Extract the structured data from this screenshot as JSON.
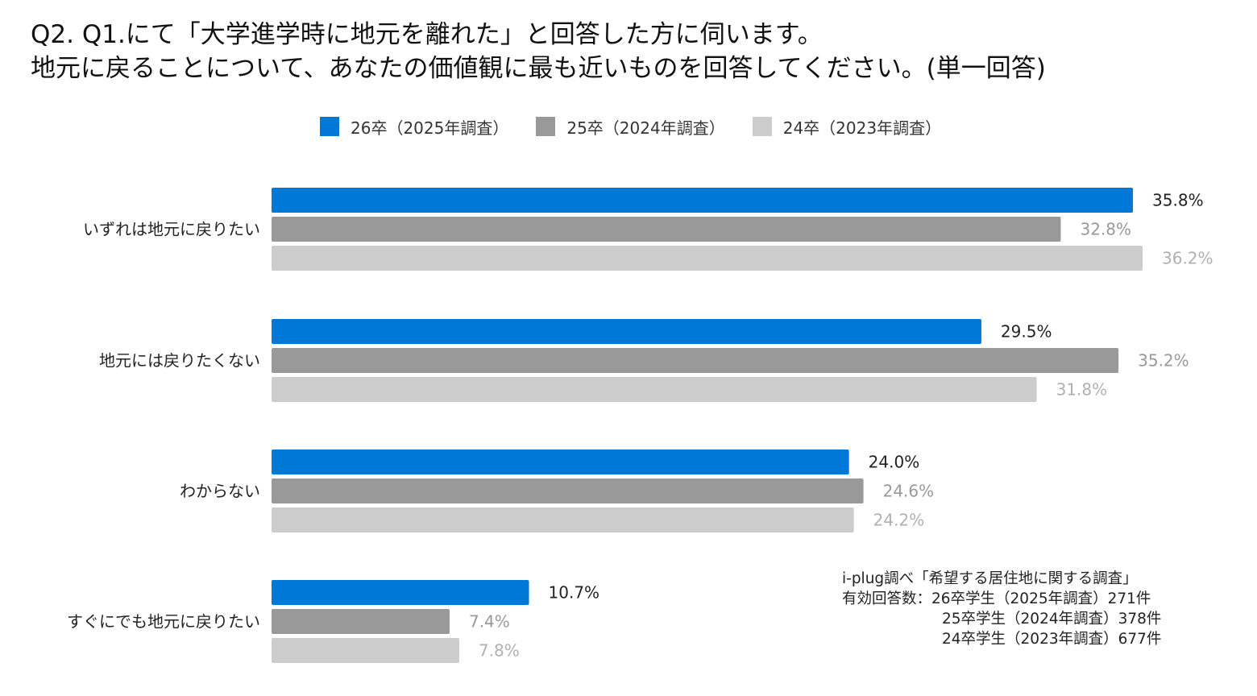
{
  "title": {
    "line1": "Q2. Q1.にて「大学進学時に地元を離れた」と回答した方に伺います。",
    "line2": "地元に戻ることについて、あなたの価値観に最も近いものを回答してください。(単一回答)"
  },
  "colors": {
    "series_2025": "#0078d7",
    "series_2024": "#999999",
    "series_2023": "#cccccc",
    "label_2025": "#222222",
    "label_2024": "#999999",
    "label_2023": "#b0b0b0"
  },
  "chart_data": {
    "type": "bar",
    "orientation": "horizontal",
    "categories": [
      "いずれは地元に戻りたい",
      "地元には戻りたくない",
      "わからない",
      "すぐにでも地元に戻りたい"
    ],
    "series": [
      {
        "name": "26卒（2025年調査）",
        "values": [
          35.8,
          29.5,
          24.0,
          10.7
        ],
        "labels": [
          "35.8%",
          "29.5%",
          "24.0%",
          "10.7%"
        ]
      },
      {
        "name": "25卒（2024年調査）",
        "values": [
          32.8,
          35.2,
          24.6,
          7.4
        ],
        "labels": [
          "32.8%",
          "35.2%",
          "24.6%",
          "7.4%"
        ]
      },
      {
        "name": "24卒（2023年調査）",
        "values": [
          36.2,
          31.8,
          24.2,
          7.8
        ],
        "labels": [
          "36.2%",
          "31.8%",
          "24.2%",
          "7.8%"
        ]
      }
    ],
    "xlim": [
      0,
      36.2
    ],
    "legend_position": "top-center",
    "grid": false
  },
  "note": {
    "source": "i-plug調べ「希望する居住地に関する調査」",
    "line1": "有効回答数：26卒学生（2025年調査）271件",
    "line2": "25卒学生（2024年調査）378件",
    "line3": "24卒学生（2023年調査）677件"
  }
}
